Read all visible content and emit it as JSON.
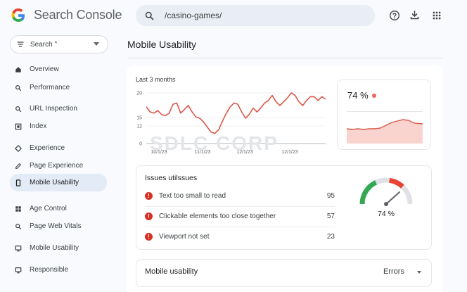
{
  "header": {
    "app_title": "Search Console",
    "search_value": "/casino-games/"
  },
  "sidebar": {
    "property_label": "Search \"",
    "items": [
      {
        "label": "Overview",
        "icon": "home-icon"
      },
      {
        "label": "Performance",
        "icon": "search-icon"
      },
      {
        "label": "URL Inspection",
        "icon": "search-icon"
      },
      {
        "label": "Index",
        "icon": "index-icon"
      },
      {
        "label": "Experience",
        "icon": "diamond-icon"
      },
      {
        "label": "Page Experience",
        "icon": "edit-icon"
      },
      {
        "label": "Mobile Usability",
        "icon": "phone-icon",
        "active": true
      },
      {
        "label": "Age Control",
        "icon": "grid-icon"
      },
      {
        "label": "Page Web Vitals",
        "icon": "search-icon"
      },
      {
        "label": "Mobile Usability",
        "icon": "screen-icon"
      },
      {
        "label": "Responsible",
        "icon": "screen-icon"
      }
    ]
  },
  "main": {
    "page_title": "Mobile Usability",
    "chart_caption": "Last 3 months",
    "watermark": "SDLC CORP",
    "stat": {
      "value": "74 %"
    },
    "issues_title": "Issues utilssues",
    "issues": [
      {
        "label": "Text too small to read",
        "count": "95"
      },
      {
        "label": "Clickable elements too close together",
        "count": "57"
      },
      {
        "label": "Viewport not set",
        "count": "23"
      }
    ],
    "gauge_label": "74 %",
    "gauge_value": 0.74,
    "bottom_title": "Mobile usability",
    "bottom_select": "Errors"
  },
  "colors": {
    "accent_line": "#d9574a",
    "accent_fill": "#f9d4cf",
    "error": "#d93025",
    "gauge_green": "#34a853",
    "gauge_red": "#ea4335"
  },
  "chart_data": {
    "type": "line",
    "x_tick_labels": [
      "10/1/23",
      "11/1/23",
      "12/1/23",
      "12/1/23"
    ],
    "y_ticks": [
      0,
      12,
      15,
      20
    ],
    "ylim": [
      0,
      20
    ],
    "series": [
      {
        "values": [
          14.5,
          12.5,
          12.0,
          13.0,
          11.5,
          11.0,
          12.0,
          15.5,
          16.0,
          12.0,
          13.5,
          15.0,
          12.5,
          10.5,
          10.0,
          8.5,
          6.5,
          4.5,
          4.0,
          5.5,
          9.0,
          12.0,
          14.5,
          16.0,
          15.5,
          12.5,
          10.0,
          11.5,
          14.0,
          12.5,
          14.0,
          16.0,
          17.0,
          19.0,
          16.5,
          15.0,
          16.5,
          18.0,
          20.0,
          19.0,
          16.5,
          15.0,
          17.0,
          18.5,
          18.5,
          17.0,
          18.5,
          17.5
        ]
      }
    ]
  }
}
